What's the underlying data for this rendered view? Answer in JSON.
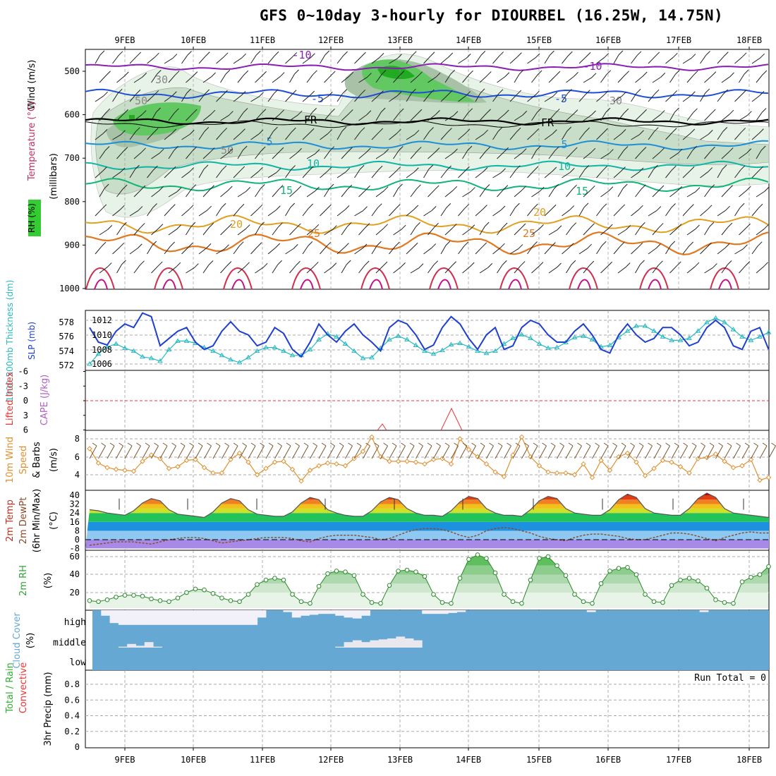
{
  "title": "GFS 0~10day 3-hourly for DIOURBEL (16.25W, 14.75N)",
  "dates": [
    "9FEB",
    "10FEB",
    "11FEB",
    "12FEB",
    "13FEB",
    "14FEB",
    "15FEB",
    "16FEB",
    "17FEB",
    "18FEB"
  ],
  "colors": {
    "rh": [
      "#e6f3e6",
      "#c8dec8",
      "#a8c2a8",
      "#62c962",
      "#22aa22"
    ],
    "temp_contour": {
      "-10": "#8a1fb4",
      "-5": "#1f4fd6",
      "5": "#1e8fd6",
      "10": "#12b5a5",
      "15": "#12b577",
      "20": "#e0a020",
      "25": "#e07820"
    },
    "thickness": "#26b8c0",
    "slp": "#1f3fcf",
    "wind10": "#e09030",
    "cloud": "#66a8d4",
    "rh2m": "#2fa52f"
  },
  "panels": {
    "upper": {
      "y_label": "(millibars)",
      "legend_wind": "Wind (m/s)",
      "legend_temp": "Temperature (°C)",
      "legend_rh": "RH (%)",
      "ticks": [
        "500",
        "600",
        "700",
        "800",
        "900",
        "1000"
      ],
      "contour_labels": [
        "-10",
        "-10",
        "-5",
        "-5",
        "FR",
        "FR",
        "5",
        "5",
        "10",
        "10",
        "15",
        "15",
        "20",
        "20",
        "25",
        "25",
        "30",
        "30",
        "50",
        "50"
      ]
    },
    "thick": {
      "label_left": "1000-500mb Thickness (dm)",
      "label_right": "SLP (mb)",
      "ticks_left": [
        "578",
        "576",
        "574",
        "572"
      ],
      "ticks_right": [
        "1012",
        "1010",
        "1008",
        "1006"
      ]
    },
    "li": {
      "label_left": "Lifted Index",
      "label_right": "CAPE (J/kg)",
      "ticks": [
        "-6",
        "-3",
        "0",
        "3",
        "6"
      ]
    },
    "wind10": {
      "label": "10m Wind",
      "label2": "Speed",
      "label3": "& Barbs",
      "unit": "(m/s)",
      "ticks": [
        "8",
        "6",
        "4"
      ]
    },
    "temp2m": {
      "label1": "2m Temp",
      "label2": "2m DewPt",
      "label3": "(6hr Min/Max)",
      "unit": "(°C)",
      "ticks": [
        "40",
        "32",
        "24",
        "16",
        "8",
        "0",
        "-8"
      ]
    },
    "rh2m": {
      "label": "2m RH",
      "unit": "(%)",
      "ticks": [
        "60",
        "40",
        "20"
      ]
    },
    "cloud": {
      "label": "Cloud Cover",
      "unit": "(%)",
      "levels": [
        "high",
        "middle",
        "low"
      ]
    },
    "precip": {
      "label1": "Total / Rain",
      "label2": "Convective",
      "label3": "3hr Precip (mm)",
      "run_total": "Run Total = 0",
      "ticks": [
        "0.8",
        "0.6",
        "0.4",
        "0.2",
        "0"
      ]
    }
  },
  "chart_data": [
    {
      "type": "line",
      "name": "thickness_slp",
      "xlabel": "",
      "ylabel": "1000-500mb Thickness (dm) / SLP (mb)",
      "series": [
        {
          "name": "SLP (mb)",
          "values": [
            1011.0,
            1009.0,
            1008.6,
            1010.5,
            1011.5,
            1011.0,
            1013.0,
            1012.5,
            1008.5,
            1009.5,
            1010.5,
            1011.0,
            1009.0,
            1008.0,
            1008.5,
            1010.5,
            1011.8,
            1010.5,
            1010.0,
            1008.5,
            1009.0,
            1011.0,
            1010.2,
            1008.0,
            1007.0,
            1009.0,
            1011.5,
            1010.0,
            1009.0,
            1010.5,
            1011.5,
            1010.0,
            1009.0,
            1007.8,
            1011.0,
            1012.0,
            1011.5,
            1010.0,
            1008.0,
            1008.6,
            1011.0,
            1012.5,
            1011.5,
            1009.5,
            1008.0,
            1010.0,
            1011.0,
            1008.0,
            1008.5,
            1011.0,
            1012.0,
            1011.5,
            1010.0,
            1009.0,
            1009.0,
            1010.5,
            1011.5,
            1010.0,
            1008.0,
            1007.5,
            1010.0,
            1011.5,
            1010.0,
            1009.0,
            1009.5,
            1011.0,
            1011.0,
            1010.0,
            1008.5,
            1009.0,
            1011.0,
            1012.0,
            1011.0,
            1008.5,
            1008.0,
            1010.5,
            1011.0,
            1008.0
          ]
        },
        {
          "name": "1000-500mb Thickness (dm)",
          "values": [
            572.2,
            573.6,
            574.6,
            575.0,
            574.4,
            574.0,
            573.2,
            573.0,
            572.6,
            574.2,
            575.4,
            575.4,
            575.1,
            574.5,
            574.0,
            573.4,
            572.8,
            572.4,
            573.1,
            574.0,
            574.5,
            574.5,
            574.0,
            573.4,
            573.4,
            574.2,
            575.6,
            576.4,
            576.0,
            575.0,
            574.0,
            573.0,
            573.1,
            574.4,
            575.6,
            576.1,
            575.6,
            574.8,
            574.0,
            573.6,
            574.1,
            574.9,
            575.1,
            574.6,
            574.0,
            573.7,
            574.0,
            575.0,
            575.8,
            576.3,
            575.8,
            575.0,
            574.4,
            574.5,
            575.2,
            575.9,
            576.1,
            575.6,
            574.6,
            574.8,
            575.9,
            576.8,
            577.5,
            577.5,
            576.8,
            576.0,
            575.5,
            575.5,
            575.8,
            576.8,
            578.0,
            578.6,
            578.0,
            577.0,
            576.0,
            575.5,
            576.0,
            576.6
          ]
        }
      ]
    },
    {
      "type": "line",
      "name": "wind10m",
      "xlabel": "",
      "ylabel": "10m Wind Speed (m/s)",
      "series": [
        {
          "name": "10m Wind Speed",
          "values": [
            6.9,
            5.3,
            4.8,
            4.6,
            4.5,
            4.4,
            5.5,
            6.2,
            5.8,
            4.7,
            4.9,
            5.6,
            5.7,
            4.8,
            4.2,
            4.2,
            5.7,
            6.4,
            5.4,
            4.0,
            4.7,
            5.4,
            5.5,
            4.6,
            3.3,
            4.5,
            5.0,
            5.3,
            5.2,
            5.0,
            5.8,
            6.6,
            8.2,
            6.0,
            5.5,
            5.5,
            5.5,
            5.4,
            5.2,
            5.7,
            5.8,
            5.2,
            8.0,
            6.8,
            6.0,
            5.2,
            4.3,
            3.8,
            6.2,
            8.2,
            6.0,
            5.0,
            4.3,
            4.2,
            4.2,
            4.0,
            5.2,
            3.7,
            5.6,
            4.5,
            6.0,
            6.4,
            5.4,
            3.9,
            4.7,
            5.6,
            5.4,
            4.9,
            4.2,
            5.8,
            5.9,
            6.3,
            5.5,
            4.8,
            5.0,
            5.7,
            3.4,
            3.7
          ]
        }
      ]
    },
    {
      "type": "area",
      "name": "temp2m",
      "xlabel": "",
      "ylabel": "2m Temp / DewPt (°C)",
      "series": [
        {
          "name": "2m Temp",
          "values": [
            27,
            26,
            24,
            23,
            22,
            26,
            33,
            37,
            35,
            27,
            23,
            22,
            21,
            20,
            25,
            33,
            37,
            35,
            27,
            23,
            22,
            21,
            21,
            25,
            33,
            38,
            36,
            27,
            24,
            22,
            21,
            21,
            26,
            34,
            38,
            36,
            28,
            24,
            22,
            22,
            21,
            26,
            34,
            39,
            37,
            28,
            24,
            22,
            22,
            21,
            27,
            35,
            39,
            37,
            28,
            24,
            23,
            22,
            22,
            27,
            36,
            41,
            38,
            28,
            24,
            23,
            22,
            22,
            28,
            37,
            42,
            38,
            28,
            24,
            23,
            22,
            21,
            20
          ]
        },
        {
          "name": "2m DewPt",
          "values": [
            -5,
            -4,
            -3,
            -2,
            -2,
            -2,
            -3,
            -4,
            -2,
            0,
            1,
            2,
            2,
            1,
            -1,
            -3,
            -2,
            -1,
            0,
            1,
            2,
            2,
            2,
            1,
            -1,
            -2,
            1,
            3,
            4,
            4,
            4,
            3,
            2,
            0,
            1,
            4,
            7,
            9,
            10,
            10,
            9,
            7,
            4,
            2,
            4,
            8,
            10,
            11,
            10,
            8,
            6,
            3,
            1,
            0,
            -1,
            2,
            4,
            5,
            5,
            4,
            3,
            1,
            0,
            0,
            2,
            4,
            6,
            6,
            5,
            3,
            1,
            -1,
            2,
            4,
            6,
            7,
            6,
            6
          ]
        }
      ]
    },
    {
      "type": "line",
      "name": "rh2m",
      "xlabel": "",
      "ylabel": "2m RH (%)",
      "series": [
        {
          "name": "2m RH",
          "values": [
            11,
            10,
            12,
            15,
            17,
            17,
            16,
            13,
            11,
            10,
            14,
            20,
            24,
            23,
            19,
            14,
            11,
            10,
            18,
            29,
            34,
            36,
            34,
            18,
            10,
            8,
            27,
            41,
            44,
            43,
            39,
            18,
            9,
            8,
            28,
            44,
            45,
            43,
            38,
            18,
            9,
            8,
            36,
            57,
            62,
            58,
            42,
            18,
            10,
            8,
            34,
            58,
            60,
            50,
            39,
            18,
            10,
            8,
            30,
            44,
            47,
            48,
            40,
            18,
            10,
            9,
            28,
            34,
            36,
            33,
            25,
            12,
            9,
            8,
            32,
            37,
            40,
            49
          ]
        }
      ]
    },
    {
      "type": "bar",
      "name": "cloud_cover",
      "xlabel": "",
      "ylabel": "Cloud Cover (%)",
      "series": [
        {
          "name": "high",
          "values": [
            100,
            70,
            30,
            20,
            20,
            20,
            20,
            20,
            20,
            20,
            20,
            20,
            20,
            20,
            20,
            20,
            20,
            20,
            20,
            60,
            100,
            100,
            90,
            60,
            70,
            75,
            80,
            80,
            70,
            60,
            55,
            70,
            100,
            100,
            100,
            100,
            100,
            100,
            80,
            80,
            80,
            85,
            90,
            100,
            100,
            100,
            100,
            100,
            100,
            100,
            100,
            100,
            100,
            100,
            100,
            100,
            100,
            90,
            100,
            100,
            100,
            100,
            100,
            100,
            100,
            100,
            100,
            100,
            100,
            100,
            90,
            100,
            100,
            100,
            100,
            100,
            100,
            100
          ]
        },
        {
          "name": "middle",
          "values": [
            0,
            0,
            0,
            5,
            20,
            10,
            30,
            5,
            0,
            0,
            0,
            0,
            0,
            0,
            0,
            0,
            0,
            0,
            0,
            0,
            0,
            0,
            0,
            0,
            0,
            0,
            0,
            0,
            5,
            30,
            40,
            30,
            40,
            45,
            50,
            60,
            50,
            40,
            0,
            0,
            0,
            0,
            0,
            0,
            0,
            0,
            0,
            0,
            0,
            0,
            0,
            0,
            0,
            0,
            0,
            0,
            0,
            0,
            0,
            0,
            0,
            0,
            0,
            0,
            0,
            0,
            0,
            0,
            0,
            0,
            0,
            0,
            0,
            0,
            0,
            0,
            0,
            0
          ]
        },
        {
          "name": "low",
          "values": [
            0,
            0,
            0,
            0,
            0,
            0,
            0,
            0,
            0,
            0,
            0,
            0,
            0,
            0,
            0,
            0,
            0,
            0,
            0,
            0,
            0,
            0,
            0,
            0,
            0,
            0,
            0,
            0,
            0,
            0,
            0,
            0,
            0,
            0,
            0,
            0,
            0,
            0,
            0,
            0,
            0,
            0,
            0,
            0,
            0,
            0,
            0,
            0,
            0,
            0,
            0,
            0,
            0,
            0,
            0,
            0,
            0,
            0,
            0,
            0,
            0,
            0,
            0,
            0,
            0,
            0,
            0,
            0,
            0,
            0,
            0,
            0,
            0,
            0,
            0,
            0,
            0,
            0
          ]
        }
      ]
    },
    {
      "type": "bar",
      "name": "precip",
      "xlabel": "",
      "ylabel": "3hr Precip (mm)",
      "ylim": [
        0,
        0.9
      ],
      "series": [
        {
          "name": "Total / Rain",
          "values": [
            0,
            0,
            0,
            0,
            0,
            0,
            0,
            0,
            0,
            0,
            0,
            0,
            0,
            0,
            0,
            0,
            0,
            0,
            0,
            0,
            0,
            0,
            0,
            0,
            0,
            0,
            0,
            0,
            0,
            0,
            0,
            0,
            0,
            0,
            0,
            0,
            0,
            0,
            0,
            0,
            0,
            0,
            0,
            0,
            0,
            0,
            0,
            0,
            0,
            0,
            0,
            0,
            0,
            0,
            0,
            0,
            0,
            0,
            0,
            0,
            0,
            0,
            0,
            0,
            0,
            0,
            0,
            0,
            0,
            0,
            0,
            0,
            0,
            0,
            0,
            0,
            0,
            0
          ]
        }
      ]
    }
  ]
}
